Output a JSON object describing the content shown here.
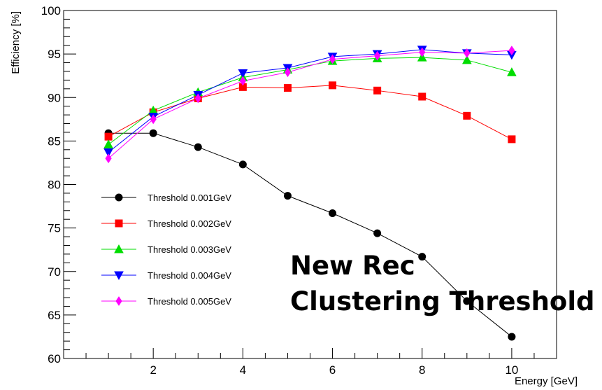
{
  "chart_data": {
    "type": "line",
    "xlabel": "Energy [GeV]",
    "ylabel": "Efficiency [%]",
    "xlim": [
      0,
      11
    ],
    "ylim": [
      60,
      100
    ],
    "x_ticks": [
      2,
      4,
      6,
      8,
      10
    ],
    "y_ticks": [
      60,
      65,
      70,
      75,
      80,
      85,
      90,
      95,
      100
    ],
    "x_tick_labels": [
      "2",
      "4",
      "6",
      "8",
      "10"
    ],
    "y_tick_labels": [
      "60",
      "65",
      "70",
      "75",
      "80",
      "85",
      "90",
      "95",
      "100"
    ],
    "grid": false,
    "legend_position": "left",
    "x": [
      1,
      2,
      3,
      4,
      5,
      6,
      7,
      8,
      9,
      10
    ],
    "series": [
      {
        "name": "Threshold 0.001GeV",
        "color": "#000000",
        "marker": "circle",
        "values": [
          85.9,
          85.9,
          84.3,
          82.3,
          78.7,
          76.7,
          74.4,
          71.7,
          66.6,
          62.5
        ]
      },
      {
        "name": "Threshold 0.002GeV",
        "color": "#ff0000",
        "marker": "square",
        "values": [
          85.5,
          88.3,
          89.9,
          91.2,
          91.1,
          91.4,
          90.8,
          90.1,
          87.9,
          85.2
        ]
      },
      {
        "name": "Threshold 0.003GeV",
        "color": "#00dd00",
        "marker": "triangle-up",
        "values": [
          84.6,
          88.5,
          90.6,
          92.3,
          93.2,
          94.2,
          94.5,
          94.6,
          94.3,
          92.9
        ]
      },
      {
        "name": "Threshold 0.004GeV",
        "color": "#0000ff",
        "marker": "triangle-down",
        "values": [
          83.7,
          87.8,
          90.3,
          92.8,
          93.4,
          94.7,
          95.0,
          95.5,
          95.1,
          94.9
        ]
      },
      {
        "name": "Threshold 0.005GeV",
        "color": "#ff00ff",
        "marker": "diamond",
        "values": [
          83.0,
          87.5,
          89.9,
          91.9,
          92.9,
          94.4,
          94.8,
          95.2,
          95.1,
          95.4
        ]
      }
    ]
  },
  "overlay": {
    "line1": "New Rec",
    "line2": "Clustering Threshold"
  }
}
